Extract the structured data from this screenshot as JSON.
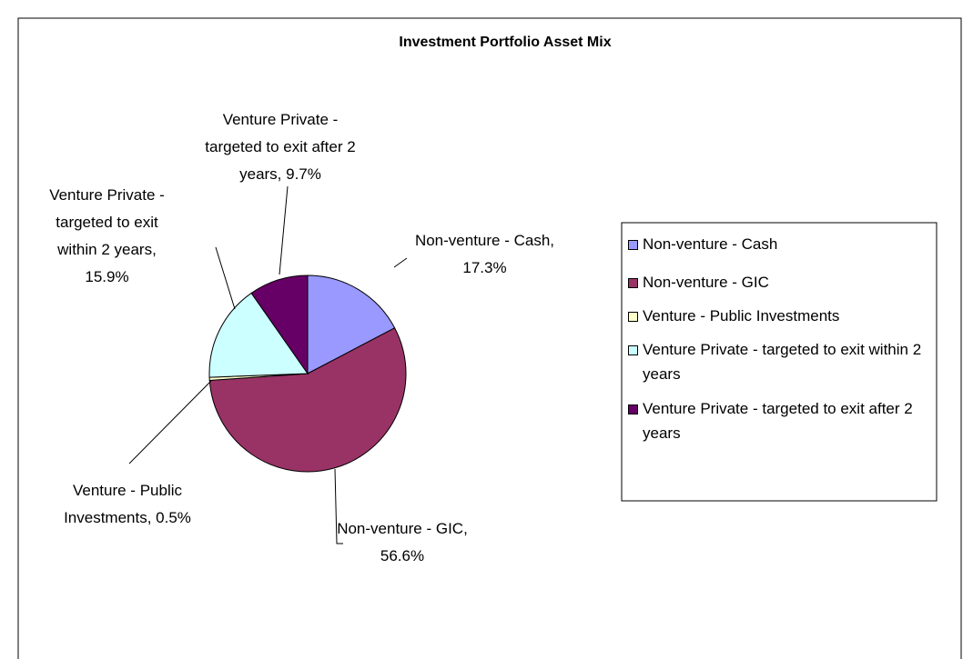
{
  "chart_data": {
    "type": "pie",
    "title": "Investment Portfolio Asset Mix",
    "categories": [
      "Non-venture - Cash",
      "Non-venture - GIC",
      "Venture - Public Investments",
      "Venture Private - targeted to exit within 2 years",
      "Venture Private - targeted to exit after 2 years"
    ],
    "values": [
      17.3,
      56.6,
      0.5,
      15.9,
      9.7
    ],
    "value_labels": [
      "Non-venture - Cash, 17.3%",
      "Non-venture - GIC, 56.6%",
      "Venture - Public Investments, 0.5%",
      "Venture Private - targeted to exit within 2 years, 15.9%",
      "Venture Private - targeted to exit after 2 years, 9.7%"
    ],
    "colors": [
      "#9999ff",
      "#993366",
      "#ffffcc",
      "#ccffff",
      "#660066"
    ],
    "legend": "right"
  }
}
